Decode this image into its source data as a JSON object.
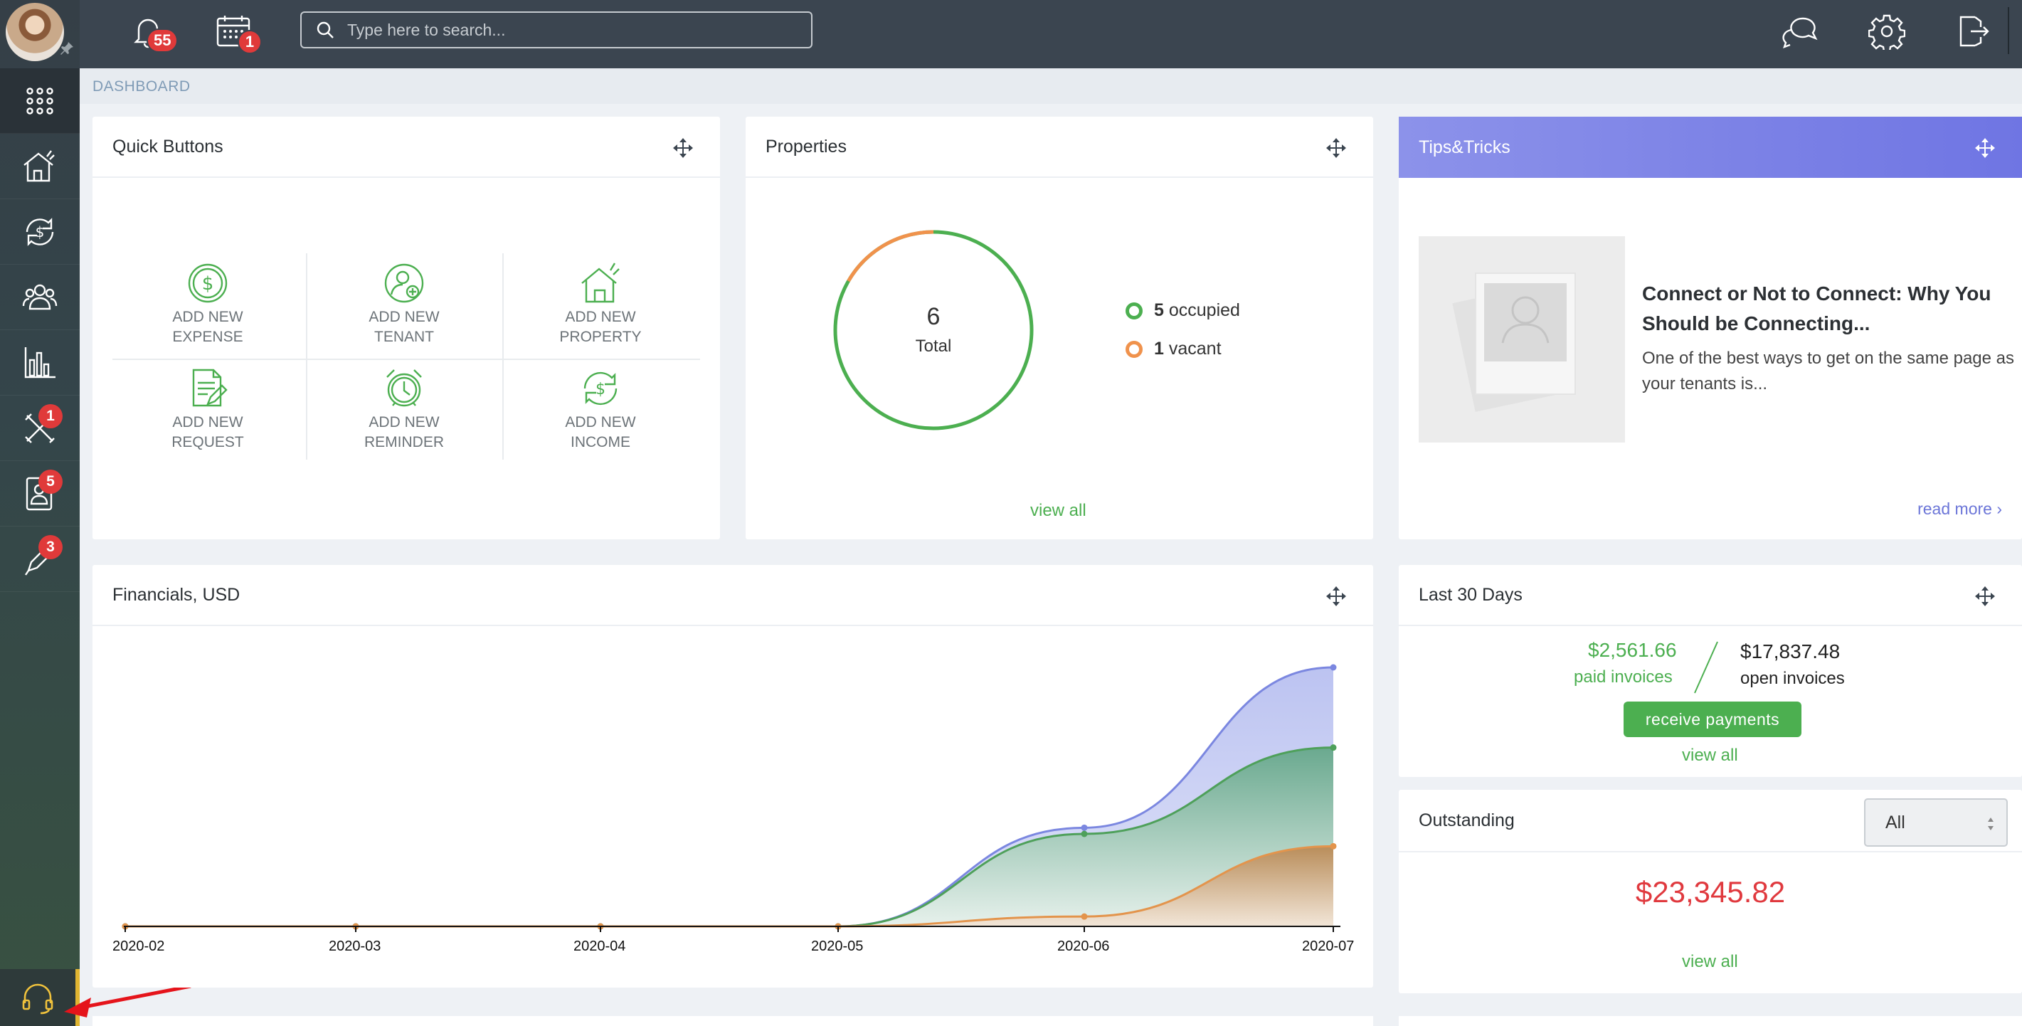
{
  "topbar": {
    "notifications_count": "55",
    "calendar_count": "1",
    "search_placeholder": "Type here to search..."
  },
  "breadcrumb": "DASHBOARD",
  "sidebar": {
    "items": [
      {
        "name": "apps",
        "icon": "grid-icon",
        "badge": ""
      },
      {
        "name": "properties",
        "icon": "house-icon",
        "badge": ""
      },
      {
        "name": "payments",
        "icon": "money-cycle-icon",
        "badge": ""
      },
      {
        "name": "people",
        "icon": "people-icon",
        "badge": ""
      },
      {
        "name": "reports",
        "icon": "bar-chart-icon",
        "badge": ""
      },
      {
        "name": "maintenance",
        "icon": "tools-icon",
        "badge": "1"
      },
      {
        "name": "applications",
        "icon": "contact-card-icon",
        "badge": "5"
      },
      {
        "name": "leases",
        "icon": "pen-icon",
        "badge": "3"
      }
    ],
    "support_icon": "headset-icon"
  },
  "quick_buttons": {
    "title": "Quick Buttons",
    "items": [
      {
        "line1": "ADD NEW",
        "line2": "EXPENSE",
        "icon": "dollar-circle-icon"
      },
      {
        "line1": "ADD NEW",
        "line2": "TENANT",
        "icon": "person-add-icon"
      },
      {
        "line1": "ADD NEW",
        "line2": "PROPERTY",
        "icon": "house-icon"
      },
      {
        "line1": "ADD NEW",
        "line2": "REQUEST",
        "icon": "document-edit-icon"
      },
      {
        "line1": "ADD NEW",
        "line2": "REMINDER",
        "icon": "alarm-clock-icon"
      },
      {
        "line1": "ADD NEW",
        "line2": "INCOME",
        "icon": "money-cycle-icon"
      }
    ]
  },
  "properties": {
    "title": "Properties",
    "total": "6",
    "total_label": "Total",
    "occupied_count": "5",
    "occupied_label": "occupied",
    "vacant_count": "1",
    "vacant_label": "vacant",
    "view_all": "view all",
    "occupied_fraction": 0.8333,
    "colors": {
      "occupied": "#4caf50",
      "vacant": "#f0924c"
    }
  },
  "tips": {
    "title": "Tips&Tricks",
    "article_title": "Connect or Not to Connect: Why You Should be Connecting...",
    "article_text": "One of the best ways to get on the same page as your tenants is...",
    "read_more": "read more"
  },
  "financials": {
    "title": "Financials, USD"
  },
  "chart_data": {
    "type": "area",
    "categories": [
      "2020-02",
      "2020-03",
      "2020-04",
      "2020-05",
      "2020-06",
      "2020-07"
    ],
    "series": [
      {
        "color": "#7b87e0",
        "fill": "#c5cbf3",
        "values": [
          0,
          0,
          0,
          0,
          1600,
          4200
        ]
      },
      {
        "color": "#4ea05a",
        "fill": "#7fb89f",
        "values": [
          0,
          0,
          0,
          0,
          1500,
          2900
        ]
      },
      {
        "color": "#e3944c",
        "fill": "#c29868",
        "values": [
          0,
          0,
          0,
          0,
          160,
          1300
        ]
      }
    ],
    "ylim": [
      0,
      4200
    ],
    "xlabel": "",
    "ylabel": "",
    "grid": false
  },
  "last30": {
    "title": "Last 30 Days",
    "paid_amount": "$2,561.66",
    "paid_label": "paid invoices",
    "open_amount": "$17,837.48",
    "open_label": "open invoices",
    "button": "receive payments",
    "view_all": "view all"
  },
  "outstanding": {
    "title": "Outstanding",
    "filter": "All",
    "amount": "$23,345.82",
    "view_all": "view all"
  }
}
